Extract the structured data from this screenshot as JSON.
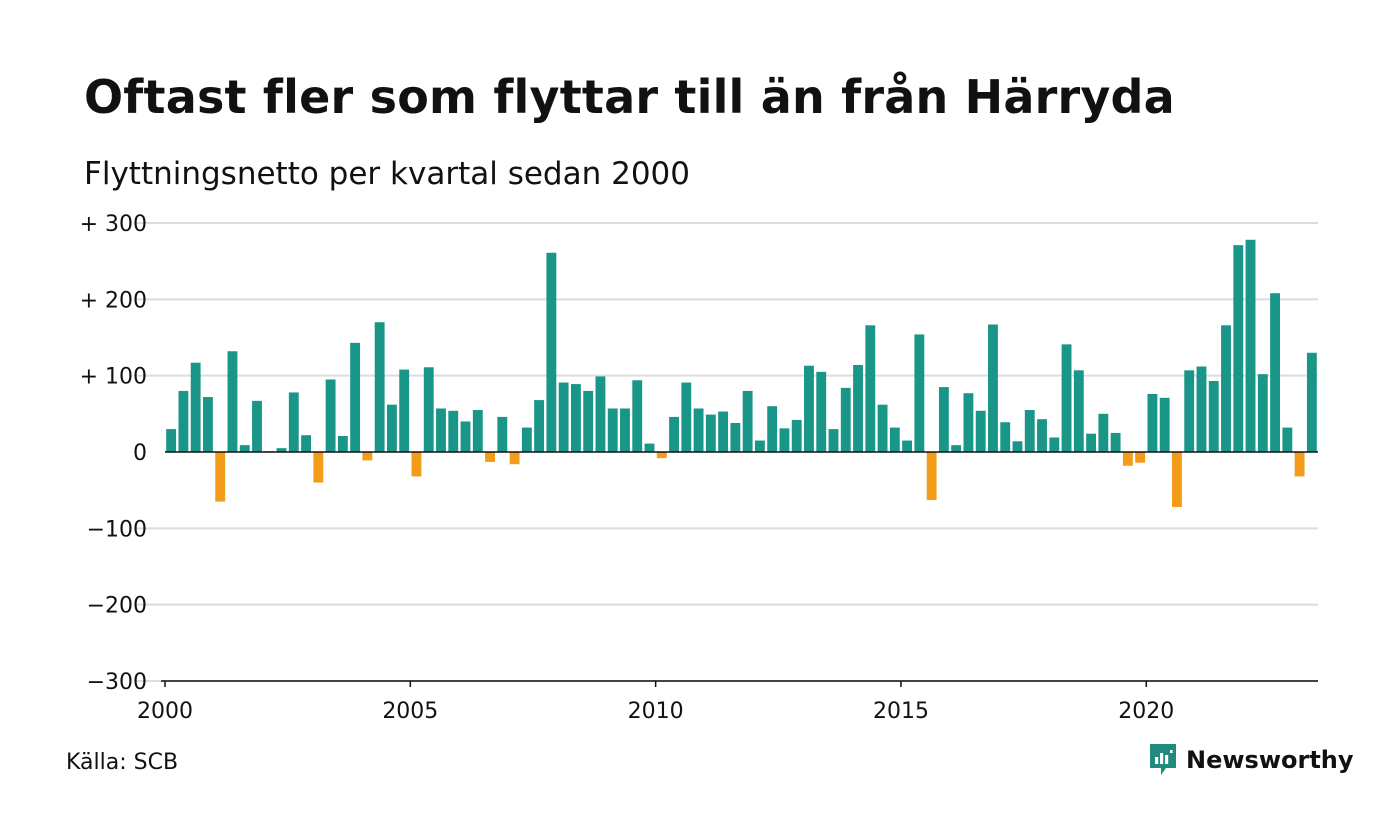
{
  "header": {
    "title": "Oftast fler som flyttar till än från Härryda",
    "subtitle": "Flyttningsnetto per kvartal sedan 2000"
  },
  "footer": {
    "source": "Källa: SCB",
    "brand": "Newsworthy",
    "brand_icon": "newsworthy-logo-icon"
  },
  "colors": {
    "positive": "#1a9688",
    "negative": "#f39c1a",
    "grid": "#dddddd",
    "brand": "#1f8b7f"
  },
  "chart_data": {
    "type": "bar",
    "title": "Oftast fler som flyttar till än från Härryda",
    "subtitle": "Flyttningsnetto per kvartal sedan 2000",
    "xlabel": "",
    "ylabel": "",
    "ylim": [
      -300,
      300
    ],
    "yticks": [
      {
        "value": 300,
        "label": "+ 300"
      },
      {
        "value": 200,
        "label": "+ 200"
      },
      {
        "value": 100,
        "label": "+ 100"
      },
      {
        "value": 0,
        "label": "0"
      },
      {
        "value": -100,
        "label": "−100"
      },
      {
        "value": -200,
        "label": "−200"
      },
      {
        "value": -300,
        "label": "−300"
      }
    ],
    "xticks": [
      {
        "value": 2000,
        "label": "2000"
      },
      {
        "value": 2005,
        "label": "2005"
      },
      {
        "value": 2010,
        "label": "2010"
      },
      {
        "value": 2015,
        "label": "2015"
      },
      {
        "value": 2020,
        "label": "2020"
      }
    ],
    "x_start": 2000,
    "periods_per_year": 4,
    "grid": true,
    "legend": "none",
    "values": [
      30,
      80,
      117,
      72,
      -65,
      132,
      9,
      67,
      1,
      5,
      78,
      22,
      -40,
      95,
      21,
      143,
      -11,
      170,
      62,
      108,
      -32,
      111,
      57,
      54,
      40,
      55,
      -13,
      46,
      -16,
      32,
      68,
      261,
      91,
      89,
      80,
      99,
      57,
      57,
      94,
      11,
      -8,
      46,
      91,
      57,
      49,
      53,
      38,
      80,
      15,
      60,
      31,
      42,
      113,
      105,
      30,
      84,
      114,
      166,
      62,
      32,
      15,
      154,
      -63,
      85,
      9,
      77,
      54,
      167,
      39,
      14,
      55,
      43,
      19,
      141,
      107,
      24,
      50,
      25,
      -18,
      -14,
      76,
      71,
      -72,
      107,
      112,
      93,
      166,
      271,
      278,
      102,
      208,
      32,
      -32,
      130
    ]
  }
}
